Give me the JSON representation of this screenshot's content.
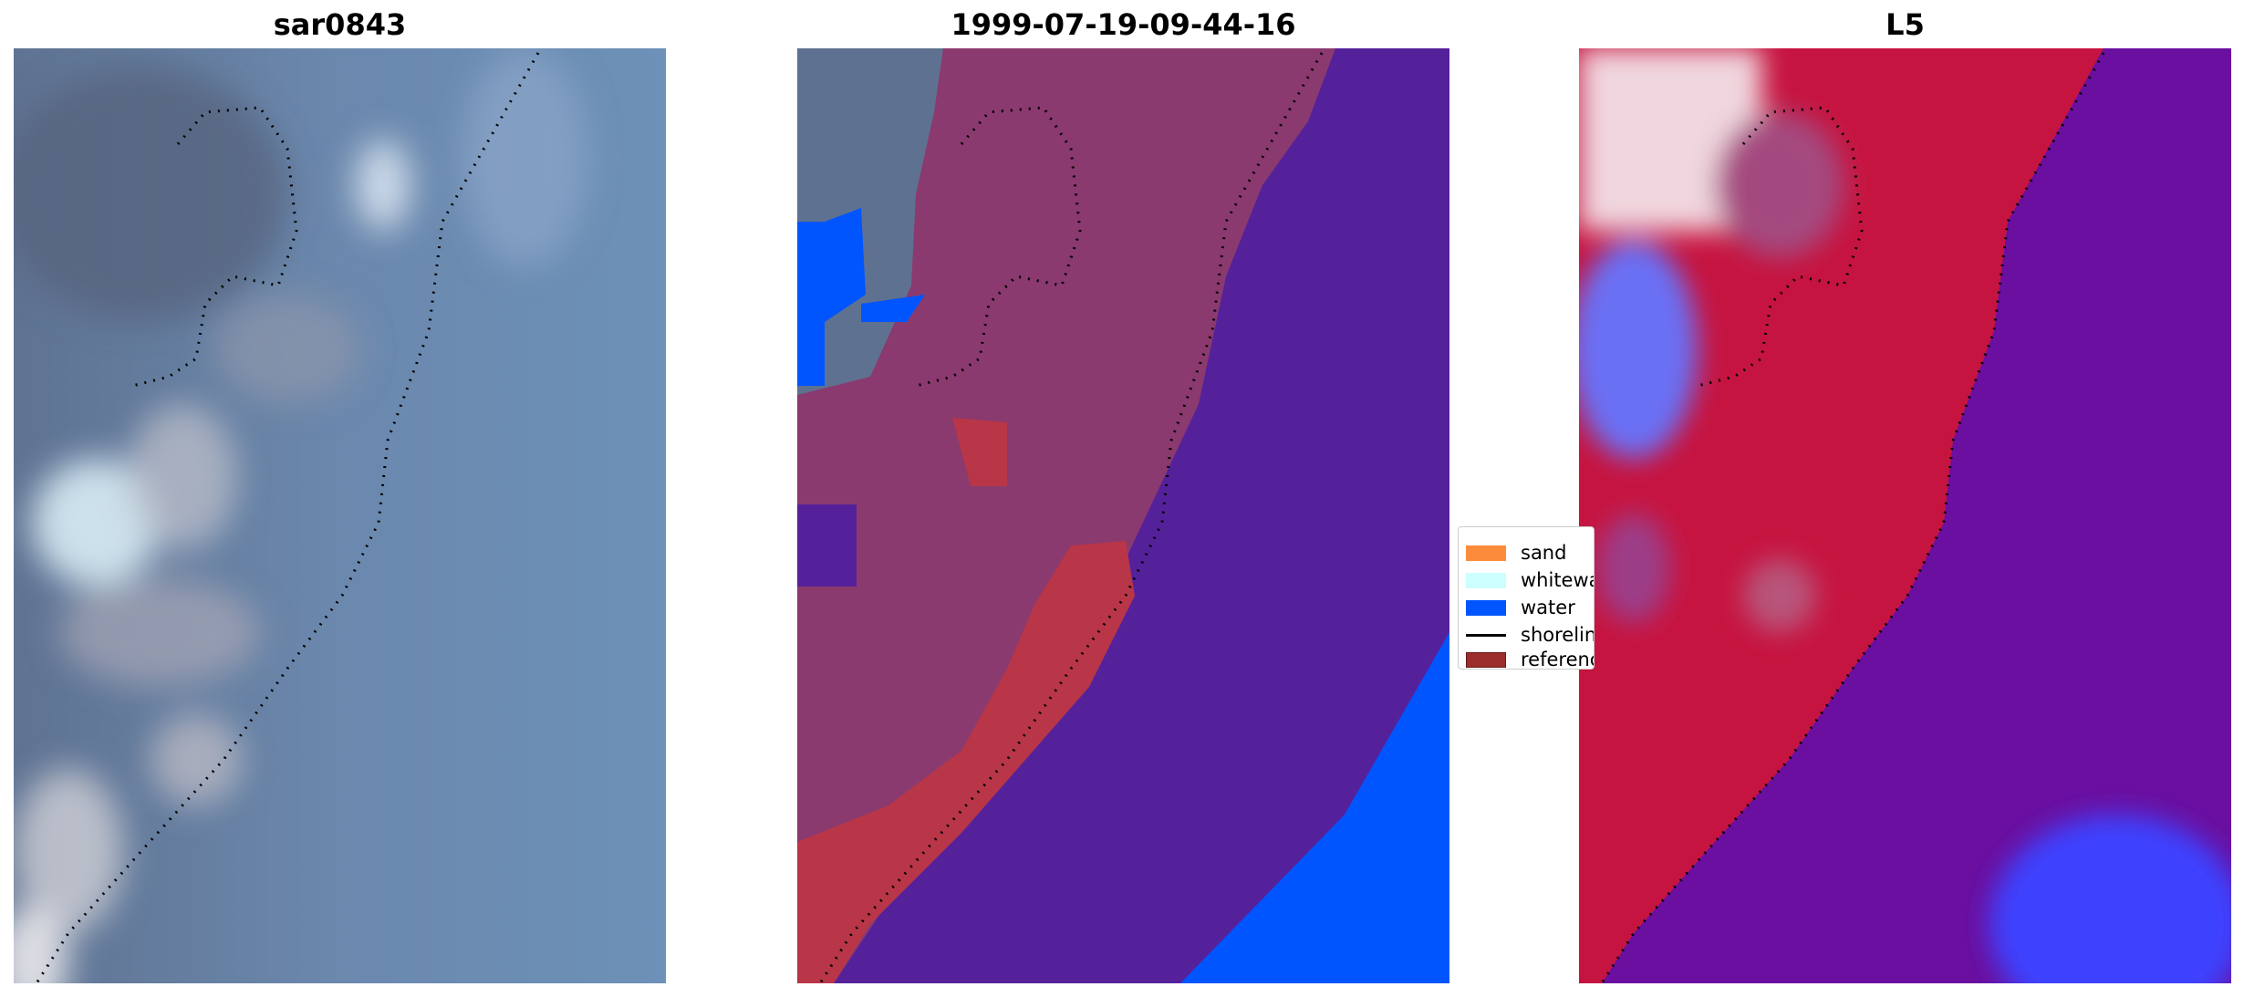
{
  "panels": [
    {
      "title": "sar0843"
    },
    {
      "title": "1999-07-19-09-44-16"
    },
    {
      "title": "L5"
    }
  ],
  "legend": {
    "items": [
      {
        "label": "sand",
        "color": "#fb8c3c"
      },
      {
        "label": "whitewater",
        "color": "#ccffff"
      },
      {
        "label": "water",
        "color": "#0055ff"
      },
      {
        "label": "shoreline",
        "color": "#000000"
      },
      {
        "label": "reference",
        "color": "#9b2d2d"
      }
    ]
  },
  "colors": {
    "rgb_sky": "#6a8db5",
    "class_purple": "#55219a",
    "class_land": "#8a3a6e",
    "class_ref": "#b83648",
    "class_water": "#0055ff",
    "index_red": "#c61440",
    "index_purple": "#6a0fa0",
    "index_blue": "#2e36ff"
  }
}
